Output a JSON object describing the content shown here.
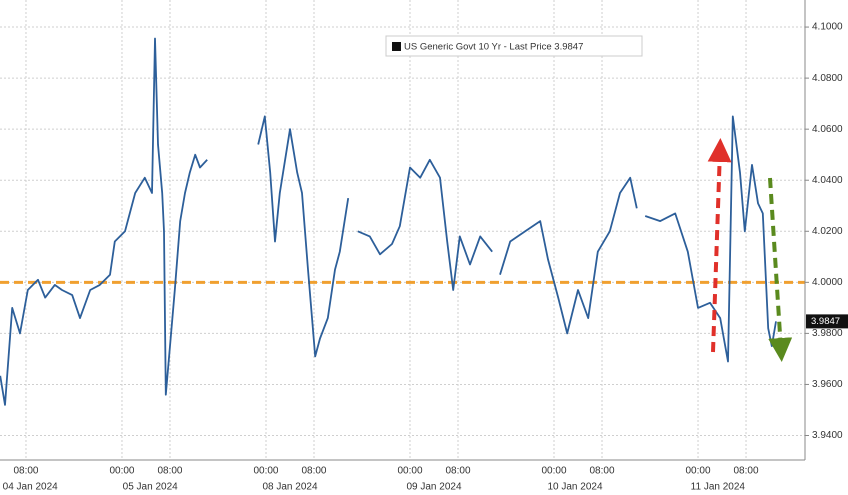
{
  "chart_data": {
    "type": "line",
    "x": [
      3.7,
      4.5,
      5.7,
      7,
      8.3,
      10,
      11.2,
      12.8,
      14,
      15.7,
      17,
      18.7,
      20.3,
      22,
      22.8,
      24.5,
      26.2,
      27.8,
      29,
      29.5,
      30,
      30.7,
      31,
      31.3,
      32,
      32.8,
      33.7,
      34.5,
      35.3,
      36.2,
      37,
      38.2,
      40,
      46.7,
      47.8,
      48.7,
      49.5,
      50.3,
      52,
      53.2,
      54,
      55,
      56.2,
      57,
      58.3,
      59.5,
      60.3,
      61.7,
      62.5,
      63.3,
      65.3,
      67,
      69,
      70.3,
      72,
      73.7,
      75.3,
      77,
      78.2,
      79.2,
      80.3,
      82,
      83.7,
      85.7,
      86.5,
      87,
      88.7,
      91.2,
      93.7,
      95,
      96.7,
      98.2,
      100,
      101.7,
      103.3,
      105.3,
      107,
      108.7,
      109.8,
      111,
      111.2,
      113.7,
      116.2,
      118.3,
      120,
      122,
      123.7,
      125,
      125.8,
      127,
      127.8,
      129,
      130,
      130.8,
      131.7,
      132.3,
      133
    ],
    "series": [
      {
        "name": "US Generic Govt 10 Yr - Last Price 3.9847",
        "color": "#2d5f9a",
        "values": [
          3.9634,
          3.952,
          3.99,
          3.98,
          3.997,
          4.001,
          3.994,
          3.999,
          3.997,
          3.995,
          3.986,
          3.997,
          3.999,
          4.003,
          4.016,
          4.02,
          4.035,
          4.041,
          4.035,
          4.0955,
          4.054,
          4.035,
          4.02,
          3.956,
          3.975,
          3.997,
          4.024,
          4.035,
          4.043,
          4.05,
          4.045,
          4.048,
          null,
          4.054,
          4.065,
          4.043,
          4.016,
          4.035,
          4.06,
          4.043,
          4.035,
          4.005,
          3.971,
          3.978,
          3.986,
          4.005,
          4.012,
          4.033,
          null,
          4.02,
          4.018,
          4.011,
          4.015,
          4.022,
          4.045,
          4.041,
          4.048,
          4.041,
          4.016,
          3.997,
          4.018,
          4.007,
          4.018,
          4.012,
          null,
          4.003,
          4.016,
          4.02,
          4.024,
          4.009,
          3.994,
          3.98,
          3.997,
          3.986,
          4.012,
          4.02,
          4.035,
          4.041,
          4.029,
          null,
          4.026,
          4.024,
          4.027,
          4.012,
          3.99,
          3.992,
          3.986,
          3.969,
          4.065,
          4.043,
          4.02,
          4.046,
          4.031,
          4.027,
          3.982,
          3.975,
          3.9847
        ]
      }
    ],
    "last_price": 3.9847,
    "reference_line": {
      "value": 4.0,
      "color": "#f0a030"
    },
    "xlim": [
      3.67,
      137.83
    ],
    "xticks": [
      {
        "value": 8,
        "label": "08:00"
      },
      {
        "value": 24,
        "label": "00:00"
      },
      {
        "value": 32,
        "label": "08:00"
      },
      {
        "value": 48,
        "label": "00:00"
      },
      {
        "value": 56,
        "label": "08:00"
      },
      {
        "value": 72,
        "label": "00:00"
      },
      {
        "value": 80,
        "label": "08:00"
      },
      {
        "value": 96,
        "label": "00:00"
      },
      {
        "value": 104,
        "label": "08:00"
      },
      {
        "value": 120,
        "label": "00:00"
      },
      {
        "value": 128,
        "label": "08:00"
      }
    ],
    "date_ticks": [
      {
        "value": 8.7,
        "label": "04 Jan 2024"
      },
      {
        "value": 28.7,
        "label": "05 Jan 2024"
      },
      {
        "value": 52,
        "label": "08 Jan 2024"
      },
      {
        "value": 76,
        "label": "09 Jan 2024"
      },
      {
        "value": 99.5,
        "label": "10 Jan 2024"
      },
      {
        "value": 123.3,
        "label": "11 Jan 2024"
      }
    ],
    "ylim": [
      3.9304,
      4.1106
    ],
    "yticks": [
      {
        "value": 3.94,
        "label": "3.9400"
      },
      {
        "value": 3.96,
        "label": "3.9600"
      },
      {
        "value": 3.98,
        "label": "3.9800"
      },
      {
        "value": 4.0,
        "label": "4.0000"
      },
      {
        "value": 4.02,
        "label": "4.0200"
      },
      {
        "value": 4.04,
        "label": "4.0400"
      },
      {
        "value": 4.06,
        "label": "4.0600"
      },
      {
        "value": 4.08,
        "label": "4.0800"
      },
      {
        "value": 4.1,
        "label": "4.1000"
      }
    ],
    "grid": true
  }
}
